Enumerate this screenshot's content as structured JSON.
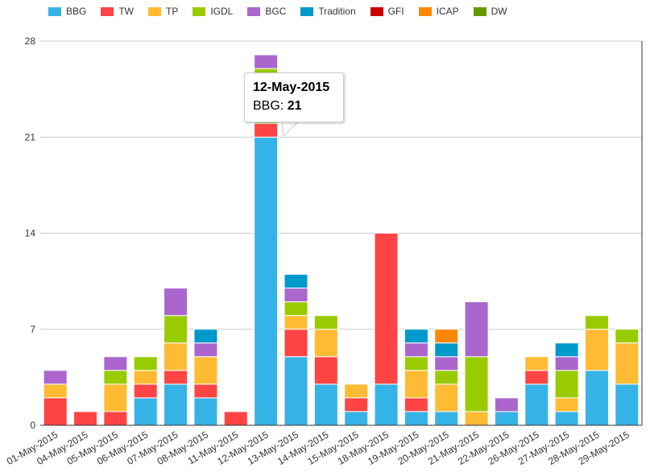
{
  "colors": {
    "BBG": "#36b3e6",
    "TW": "#ff4444",
    "TP": "#ffbb33",
    "IGDL": "#99cc00",
    "BGC": "#aa66cc",
    "Tradition": "#0099cc",
    "GFI": "#cc0000",
    "ICAP": "#ff8800",
    "DW": "#669900"
  },
  "chart_data": {
    "type": "bar",
    "stacked": true,
    "categories": [
      "01-May-2015",
      "04-May-2015",
      "05-May-2015",
      "06-May-2015",
      "07-May-2015",
      "08-May-2015",
      "11-May-2015",
      "12-May-2015",
      "13-May-2015",
      "14-May-2015",
      "15-May-2015",
      "18-May-2015",
      "19-May-2015",
      "20-May-2015",
      "21-May-2015",
      "22-May-2015",
      "26-May-2015",
      "27-May-2015",
      "28-May-2015",
      "29-May-2015"
    ],
    "series": [
      {
        "name": "BBG",
        "values": [
          0,
          0,
          0,
          2,
          3,
          2,
          0,
          21,
          5,
          3,
          1,
          3,
          1,
          1,
          0,
          1,
          3,
          1,
          4,
          3
        ]
      },
      {
        "name": "TW",
        "values": [
          2,
          1,
          1,
          1,
          1,
          1,
          1,
          1,
          2,
          2,
          1,
          11,
          1,
          0,
          0,
          0,
          1,
          0,
          0,
          0
        ]
      },
      {
        "name": "TP",
        "values": [
          1,
          0,
          2,
          1,
          2,
          2,
          0,
          0,
          1,
          2,
          1,
          0,
          2,
          2,
          1,
          0,
          1,
          1,
          3,
          3
        ]
      },
      {
        "name": "IGDL",
        "values": [
          0,
          0,
          1,
          1,
          2,
          0,
          0,
          4,
          1,
          1,
          0,
          0,
          1,
          1,
          4,
          0,
          0,
          2,
          1,
          1
        ]
      },
      {
        "name": "BGC",
        "values": [
          1,
          0,
          1,
          0,
          2,
          1,
          0,
          1,
          1,
          0,
          0,
          0,
          1,
          1,
          4,
          1,
          0,
          1,
          0,
          0
        ]
      },
      {
        "name": "Tradition",
        "values": [
          0,
          0,
          0,
          0,
          0,
          1,
          0,
          0,
          1,
          0,
          0,
          0,
          1,
          1,
          0,
          0,
          0,
          1,
          0,
          0
        ]
      },
      {
        "name": "GFI",
        "values": [
          0,
          0,
          0,
          0,
          0,
          0,
          0,
          0,
          0,
          0,
          0,
          0,
          0,
          0,
          0,
          0,
          0,
          0,
          0,
          0
        ]
      },
      {
        "name": "ICAP",
        "values": [
          0,
          0,
          0,
          0,
          0,
          0,
          0,
          0,
          0,
          0,
          0,
          0,
          0,
          1,
          0,
          0,
          0,
          0,
          0,
          0
        ]
      },
      {
        "name": "DW",
        "values": [
          0,
          0,
          0,
          0,
          0,
          0,
          0,
          0,
          0,
          0,
          0,
          0,
          0,
          0,
          0,
          0,
          0,
          0,
          0,
          0
        ]
      }
    ],
    "yticks": [
      0,
      7,
      14,
      21,
      28
    ],
    "ylim": [
      0,
      28
    ],
    "grid": true,
    "legend": "top-left"
  },
  "tooltip": {
    "title": "12-May-2015",
    "series_label": "BBG: ",
    "value": "21"
  }
}
